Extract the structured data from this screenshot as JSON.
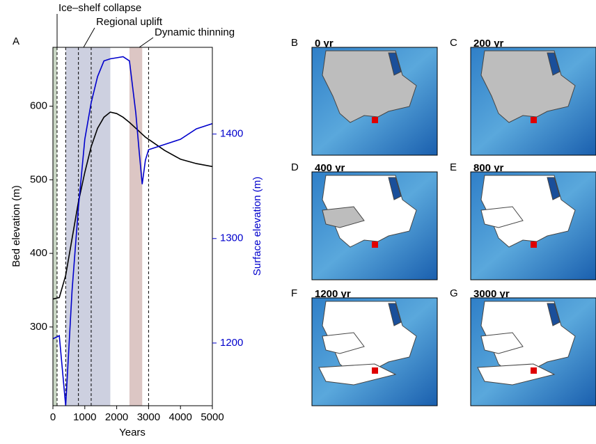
{
  "chart_data": {
    "type": "line",
    "panel_label": "A",
    "annotations": [
      "Ice–shelf collapse",
      "Regional uplift",
      "Dynamic thinning"
    ],
    "x_label": "Years",
    "y_label": "Bed elevation (m)",
    "y2_label": "Surface elevation (m)",
    "x": [
      0,
      200,
      400,
      600,
      800,
      1000,
      1200,
      1400,
      1600,
      1800,
      2000,
      2200,
      2400,
      2600,
      2700,
      2800,
      2900,
      3000,
      3500,
      4000,
      4500,
      5000
    ],
    "series": [
      {
        "name": "Bed elevation",
        "color": "#000000",
        "values": [
          338,
          340,
          370,
          420,
          470,
          510,
          545,
          570,
          585,
          592,
          590,
          585,
          578,
          570,
          566,
          562,
          558,
          555,
          540,
          528,
          522,
          518
        ]
      },
      {
        "name": "Surface elevation",
        "color": "#0000cc",
        "axis": "y2",
        "values": [
          1204,
          1207,
          1140,
          1250,
          1330,
          1395,
          1430,
          1455,
          1470,
          1472,
          1473,
          1474,
          1470,
          1420,
          1385,
          1352,
          1375,
          1385,
          1390,
          1395,
          1405,
          1410
        ]
      }
    ],
    "xlim": [
      0,
      5000
    ],
    "xticks": [
      0,
      1000,
      2000,
      3000,
      4000,
      5000
    ],
    "ylim": [
      193,
      680
    ],
    "yticks": [
      300,
      400,
      500,
      600
    ],
    "y2lim": [
      1140,
      1483
    ],
    "y2ticks": [
      1200,
      1300,
      1400
    ],
    "shaded_spans": [
      {
        "start": 0,
        "end": 130,
        "color": "#c9d6c4"
      },
      {
        "start": 400,
        "end": 1800,
        "color": "#cdd0e0"
      },
      {
        "start": 2400,
        "end": 2800,
        "color": "#dcc6c4"
      }
    ],
    "dashed_lines": [
      130,
      400,
      800,
      1200,
      3000
    ]
  },
  "panels": [
    {
      "letter": "B",
      "label": "0 yr"
    },
    {
      "letter": "C",
      "label": "200 yr"
    },
    {
      "letter": "D",
      "label": "400 yr"
    },
    {
      "letter": "E",
      "label": "800 yr"
    },
    {
      "letter": "F",
      "label": "1200 yr"
    },
    {
      "letter": "G",
      "label": "3000 yr"
    }
  ]
}
